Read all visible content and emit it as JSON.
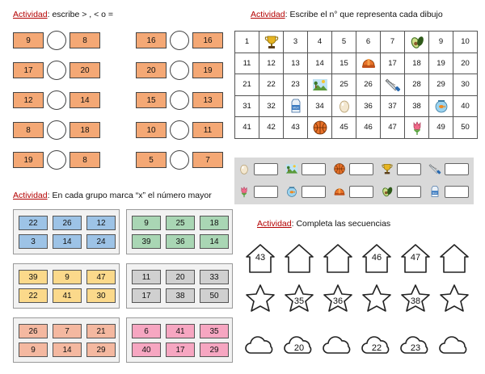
{
  "comparison": {
    "title_lead": "Actividad",
    "title_rest": ": escribe > , < o =",
    "left_pairs": [
      [
        "9",
        "8"
      ],
      [
        "17",
        "20"
      ],
      [
        "12",
        "14"
      ],
      [
        "8",
        "18"
      ],
      [
        "19",
        "8"
      ]
    ],
    "right_pairs": [
      [
        "16",
        "16"
      ],
      [
        "20",
        "19"
      ],
      [
        "15",
        "13"
      ],
      [
        "10",
        "11"
      ],
      [
        "5",
        "7"
      ]
    ]
  },
  "grid_activity": {
    "title_lead": "Actividad",
    "title_rest": ": Escribe el n° que representa cada dibujo",
    "rows": [
      [
        "1",
        "trophy-icon",
        "3",
        "4",
        "5",
        "6",
        "7",
        "avocado-icon",
        "9",
        "10"
      ],
      [
        "11",
        "12",
        "13",
        "14",
        "15",
        "helmet-icon",
        "17",
        "18",
        "19",
        "20"
      ],
      [
        "21",
        "22",
        "23",
        "landscape-icon",
        "25",
        "26",
        "saw-icon",
        "28",
        "29",
        "30"
      ],
      [
        "31",
        "32",
        "milk-icon",
        "34",
        "egg-icon",
        "36",
        "37",
        "38",
        "fishbowl-icon",
        "40"
      ],
      [
        "41",
        "42",
        "43",
        "basketball-icon",
        "45",
        "46",
        "47",
        "tulip-icon",
        "49",
        "50"
      ]
    ],
    "key_row1": [
      "egg-icon",
      "landscape-icon",
      "basketball-icon",
      "trophy-icon",
      "saw-icon"
    ],
    "key_row2": [
      "tulip-icon",
      "fishbowl-icon",
      "helmet-icon",
      "avocado-icon",
      "milk-icon"
    ]
  },
  "groups_activity": {
    "title_lead": "Actividad",
    "title_rest": ": En cada grupo marca “x” el número mayor",
    "groups": [
      {
        "color": "#9dc3e6",
        "bg": "#ffffff",
        "cells": [
          "22",
          "26",
          "12",
          "3",
          "14",
          "24"
        ]
      },
      {
        "color": "#a9d6b4",
        "bg": "#ffffff",
        "cells": [
          "9",
          "25",
          "18",
          "39",
          "36",
          "14"
        ]
      },
      {
        "color": "#fbd98b",
        "bg": "#ffffff",
        "cells": [
          "39",
          "9",
          "47",
          "22",
          "41",
          "30"
        ]
      },
      {
        "color": "#d0d0d0",
        "bg": "#ffffff",
        "cells": [
          "11",
          "20",
          "33",
          "17",
          "38",
          "50"
        ]
      },
      {
        "color": "#f4b8a0",
        "bg": "#ffffff",
        "cells": [
          "26",
          "7",
          "21",
          "9",
          "14",
          "29"
        ]
      },
      {
        "color": "#f6a6c1",
        "bg": "#ffffff",
        "cells": [
          "6",
          "41",
          "35",
          "40",
          "17",
          "29"
        ]
      }
    ]
  },
  "sequence_activity": {
    "title_lead": "Actividad",
    "title_rest": ": Completa las secuencias",
    "houses": [
      "43",
      "",
      "",
      "46",
      "47",
      ""
    ],
    "stars": [
      "",
      "35",
      "36",
      "",
      "38",
      ""
    ],
    "clouds": [
      "",
      "20",
      "",
      "22",
      "23",
      ""
    ]
  }
}
